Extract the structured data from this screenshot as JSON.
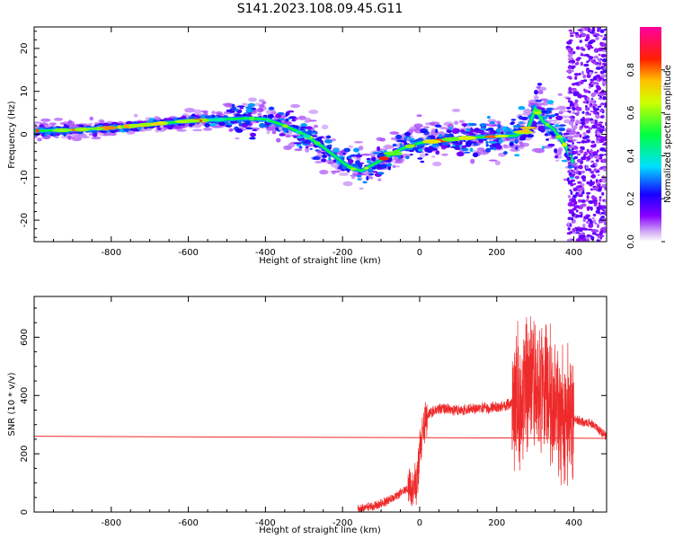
{
  "figure_title": "S141.2023.108.09.45.G11",
  "chart_data": [
    {
      "type": "heatmap",
      "xlabel": "Height of straight line (km)",
      "ylabel": "Frequency (Hz)",
      "xlim": [
        -1000,
        485
      ],
      "ylim": [
        -25,
        25
      ],
      "xticks": [
        -800,
        -600,
        -400,
        -200,
        0,
        200,
        400
      ],
      "yticks": [
        -20,
        -10,
        0,
        10,
        20
      ],
      "colorbar": {
        "label": "Normalized spectral amplitude",
        "range": [
          0,
          1
        ],
        "ticks": [
          0.0,
          0.2,
          0.4,
          0.6,
          0.8
        ],
        "colormap": "rainbow (white-purple-blue-cyan-green-yellow-red-magenta)"
      },
      "ridge": {
        "x": [
          -1000,
          -900,
          -800,
          -700,
          -600,
          -500,
          -450,
          -400,
          -350,
          -300,
          -250,
          -200,
          -175,
          -150,
          -100,
          -50,
          0,
          50,
          100,
          150,
          200,
          250,
          280,
          300,
          320,
          350,
          380,
          400
        ],
        "y": [
          0.8,
          1.0,
          1.5,
          2.3,
          3.1,
          3.5,
          3.7,
          3.5,
          2.0,
          0.0,
          -3.0,
          -6.5,
          -8.0,
          -8.5,
          -6.0,
          -3.5,
          -2.0,
          -1.5,
          -1.0,
          -0.7,
          -0.5,
          -0.3,
          1.0,
          6.0,
          3.0,
          1.0,
          -3.0,
          -7.0
        ]
      }
    },
    {
      "type": "line",
      "xlabel": "Height of straight line (km)",
      "ylabel": "SNR (10 * v/v)",
      "xlim": [
        -1000,
        485
      ],
      "ylim": [
        0,
        740
      ],
      "xticks": [
        -800,
        -600,
        -400,
        -200,
        0,
        200,
        400
      ],
      "yticks": [
        0,
        200,
        400,
        600
      ],
      "reference_line": {
        "x": [
          -1000,
          485
        ],
        "y": [
          260,
          253
        ]
      },
      "series": [
        {
          "color": "#ee2a2a",
          "x": [
            -160,
            -120,
            -80,
            -60,
            -40,
            -20,
            -5,
            0,
            10,
            20,
            40,
            60,
            100,
            150,
            200,
            240,
            260,
            280,
            300,
            320,
            340,
            360,
            380,
            400,
            420,
            450,
            485
          ],
          "y": [
            10,
            20,
            40,
            55,
            75,
            80,
            110,
            200,
            290,
            330,
            350,
            355,
            350,
            355,
            360,
            370,
            380,
            420,
            450,
            420,
            380,
            350,
            330,
            320,
            310,
            300,
            260
          ]
        }
      ]
    }
  ]
}
